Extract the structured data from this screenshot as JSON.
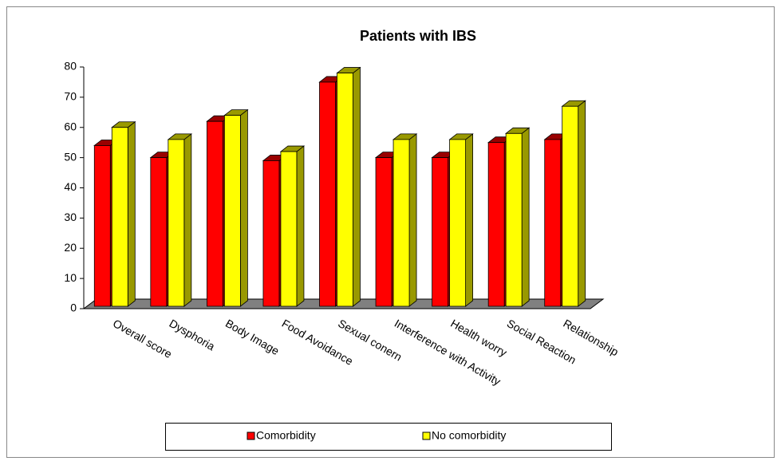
{
  "chart_data": {
    "type": "bar3d",
    "title": "Patients with IBS",
    "categories": [
      "Overall score",
      "Dysphoria",
      "Body Image",
      "Food Avoidance",
      "Sexual conern",
      "Interference with Activity",
      "Health worry",
      "Social Reaction",
      "Relationship"
    ],
    "series": [
      {
        "name": "Comorbidity",
        "color": "#ff0000",
        "values": [
          54,
          50,
          62,
          49,
          75,
          50,
          50,
          55,
          56
        ]
      },
      {
        "name": "No comorbidity",
        "color": "#ffff00",
        "values": [
          60,
          56,
          64,
          52,
          78,
          56,
          56,
          58,
          67
        ]
      }
    ],
    "ylim": [
      0,
      80
    ],
    "yticks": [
      0,
      10,
      20,
      30,
      40,
      50,
      60,
      70,
      80
    ],
    "legend": "bottom"
  }
}
